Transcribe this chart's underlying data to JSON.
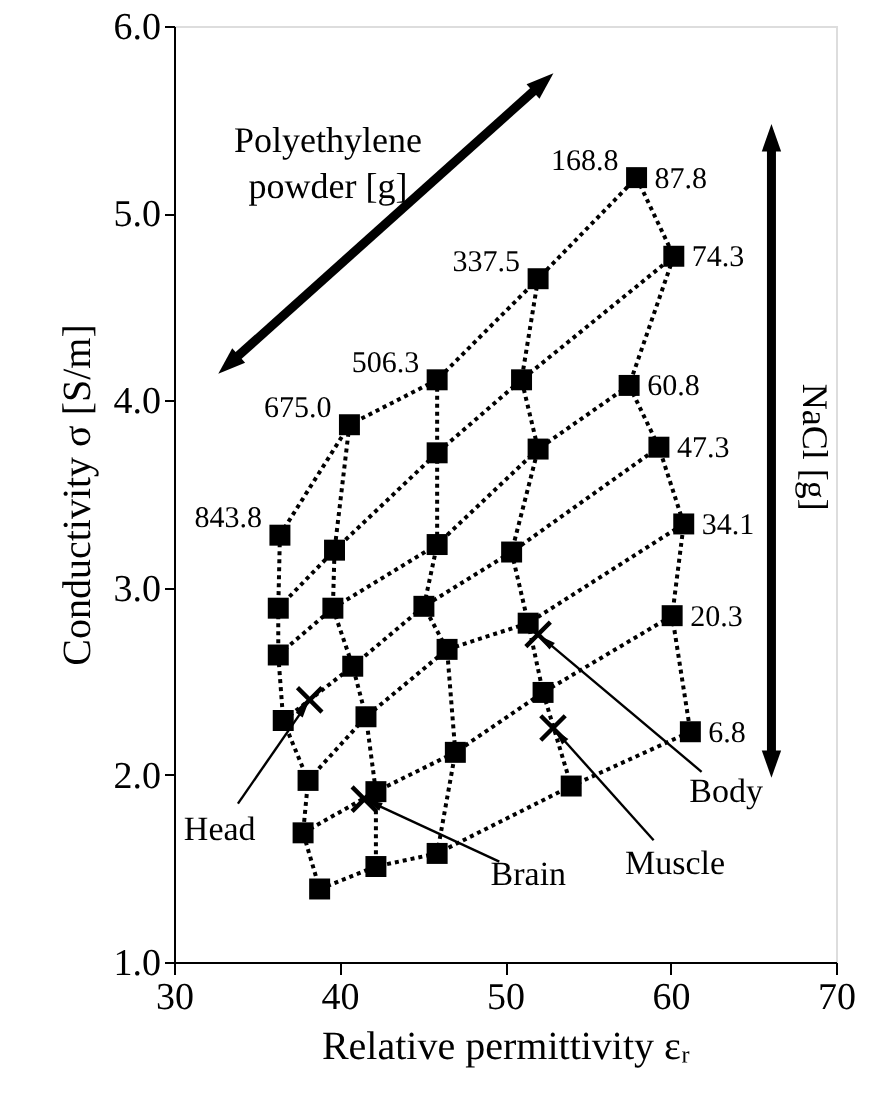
{
  "chart_data": {
    "type": "line",
    "xlabel": "Relative permittivity εᵣ",
    "ylabel": "Conductivity σ [S/m]",
    "xlim": [
      30,
      70
    ],
    "xticks": [
      30,
      40,
      50,
      60,
      70
    ],
    "ylim": [
      1,
      6
    ],
    "yticks": [
      {
        "value": 1,
        "label": "1.0"
      },
      {
        "value": 2,
        "label": "2.0"
      },
      {
        "value": 3,
        "label": "3.0"
      },
      {
        "value": 4,
        "label": "4.0"
      },
      {
        "value": 5,
        "label": "5.0"
      },
      {
        "value": 6,
        "label": "6.0"
      }
    ],
    "grid": false,
    "series": [
      {
        "name": "168.8",
        "marker": "square",
        "line_style": "dotted",
        "color": "#000000",
        "x": [
          57.95,
          60.2,
          57.5,
          59.3,
          60.8,
          60.1,
          61.2
        ],
        "values": [
          5.19,
          4.77,
          4.08,
          3.75,
          3.34,
          2.85,
          2.23
        ]
      },
      {
        "name": "337.5",
        "marker": "square",
        "line_style": "dotted",
        "color": "#000000",
        "x": [
          52.0,
          51.0,
          52.0,
          50.4,
          51.4,
          52.3,
          54.0
        ],
        "values": [
          4.65,
          4.11,
          3.74,
          3.19,
          2.81,
          2.44,
          1.94
        ]
      },
      {
        "name": "506.3",
        "marker": "square",
        "line_style": "dotted",
        "color": "#000000",
        "x": [
          45.9,
          45.9,
          45.9,
          45.1,
          46.5,
          47.0,
          45.9
        ],
        "values": [
          4.11,
          3.72,
          3.23,
          2.9,
          2.67,
          2.12,
          1.58
        ]
      },
      {
        "name": "675.0",
        "marker": "square",
        "line_style": "dotted",
        "color": "#000000",
        "x": [
          40.6,
          39.7,
          39.6,
          40.8,
          41.6,
          42.2,
          42.2
        ],
        "values": [
          3.87,
          3.2,
          2.89,
          2.58,
          2.31,
          1.91,
          1.51
        ]
      },
      {
        "name": "843.8",
        "marker": "square",
        "line_style": "dotted",
        "color": "#000000",
        "x": [
          36.4,
          36.3,
          36.3,
          36.6,
          38.1,
          37.8,
          38.8
        ],
        "values": [
          3.28,
          2.89,
          2.64,
          2.29,
          1.97,
          1.69,
          1.39
        ]
      },
      {
        "name": "87.8",
        "marker": "none",
        "line_style": "dotted",
        "color": "#000000",
        "x": [
          36.4,
          40.6,
          45.9,
          52.0,
          57.95
        ],
        "values": [
          3.28,
          3.87,
          4.11,
          4.65,
          5.19
        ]
      },
      {
        "name": "74.3",
        "marker": "none",
        "line_style": "dotted",
        "color": "#000000",
        "x": [
          36.3,
          39.7,
          45.9,
          51.0,
          60.2
        ],
        "values": [
          2.89,
          3.2,
          3.72,
          4.11,
          4.77
        ]
      },
      {
        "name": "60.8",
        "marker": "none",
        "line_style": "dotted",
        "color": "#000000",
        "x": [
          36.3,
          39.6,
          45.9,
          52.0,
          57.5
        ],
        "values": [
          2.64,
          2.89,
          3.23,
          3.74,
          4.08
        ]
      },
      {
        "name": "47.3",
        "marker": "none",
        "line_style": "dotted",
        "color": "#000000",
        "x": [
          36.6,
          40.8,
          45.1,
          50.4,
          59.3
        ],
        "values": [
          2.29,
          2.58,
          2.9,
          3.19,
          3.75
        ]
      },
      {
        "name": "34.1",
        "marker": "none",
        "line_style": "dotted",
        "color": "#000000",
        "x": [
          38.1,
          41.6,
          46.5,
          51.4,
          60.8
        ],
        "values": [
          1.97,
          2.31,
          2.67,
          2.81,
          3.34
        ]
      },
      {
        "name": "20.3",
        "marker": "none",
        "line_style": "dotted",
        "color": "#000000",
        "x": [
          37.8,
          42.2,
          47.0,
          52.3,
          60.1
        ],
        "values": [
          1.69,
          1.91,
          2.12,
          2.44,
          2.85
        ]
      },
      {
        "name": "6.8",
        "marker": "none",
        "line_style": "dotted",
        "color": "#000000",
        "x": [
          38.8,
          42.2,
          45.9,
          54.0,
          61.2
        ],
        "values": [
          1.39,
          1.51,
          1.58,
          1.94,
          2.23
        ]
      },
      {
        "type": "scatter",
        "marker": "cross",
        "color": "#000000",
        "x": [
          38.2,
          41.5,
          52.0,
          52.9
        ],
        "values": [
          2.4,
          1.87,
          2.75,
          2.25
        ]
      }
    ],
    "annotations": [
      "Polyethylene\npowder [g]",
      "NaCl [g]",
      {
        "text": "Head",
        "x": 38.2,
        "y": 2.4
      },
      {
        "text": "Brain",
        "x": 41.5,
        "y": 1.87
      },
      {
        "text": "Body",
        "x": 52.0,
        "y": 2.75
      },
      {
        "text": "Muscle",
        "x": 52.9,
        "y": 2.25
      }
    ]
  }
}
